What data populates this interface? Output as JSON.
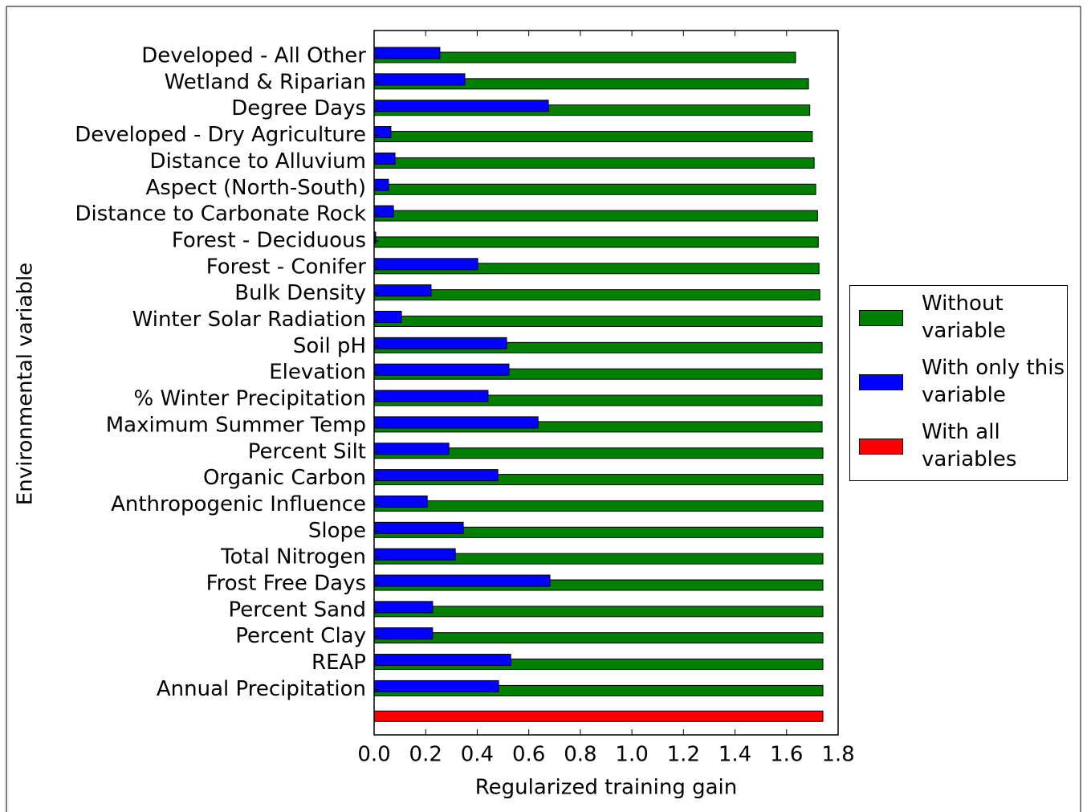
{
  "chart_data": {
    "type": "hbar_grouped",
    "x_label": "Regularized training gain",
    "y_label": "Environmental variable",
    "categories": [
      "Developed - All Other",
      "Wetland & Riparian",
      "Degree Days",
      "Developed - Dry Agriculture",
      "Distance to Alluvium",
      "Aspect (North-South)",
      "Distance to Carbonate Rock",
      "Forest - Deciduous",
      "Forest - Conifer",
      "Bulk Density",
      "Winter Solar Radiation",
      "Soil pH",
      "Elevation",
      "% Winter Precipitation",
      "Maximum Summer Temp",
      "Percent Silt",
      "Organic Carbon",
      "Anthropogenic Influence",
      "Slope",
      "Total Nitrogen",
      "Frost Free Days",
      "Percent Sand",
      "Percent Clay",
      "REAP",
      "Annual Precipitation",
      null
    ],
    "series": [
      {
        "name": "Without variable",
        "color": "#008000",
        "values": [
          1.635,
          1.685,
          1.69,
          1.7,
          1.707,
          1.713,
          1.72,
          1.723,
          1.726,
          1.729,
          1.738,
          1.738,
          1.738,
          1.738,
          1.738,
          1.741,
          1.741,
          1.741,
          1.741,
          1.741,
          1.741,
          1.741,
          1.741,
          1.741,
          1.741,
          null
        ]
      },
      {
        "name": "With only this variable",
        "color": "#0000ff",
        "values": [
          0.255,
          0.352,
          0.676,
          0.065,
          0.081,
          0.056,
          0.075,
          0.006,
          0.402,
          0.221,
          0.106,
          0.514,
          0.523,
          0.442,
          0.636,
          0.29,
          0.48,
          0.206,
          0.346,
          0.315,
          0.682,
          0.227,
          0.227,
          0.53,
          0.483,
          null
        ]
      },
      {
        "name": "With all variables",
        "color": "#ff0000",
        "values": [
          null,
          null,
          null,
          null,
          null,
          null,
          null,
          null,
          null,
          null,
          null,
          null,
          null,
          null,
          null,
          null,
          null,
          null,
          null,
          null,
          null,
          null,
          null,
          null,
          null,
          1.741
        ]
      }
    ],
    "xlim": [
      0,
      1.8
    ],
    "xticks": [
      {
        "value": 0,
        "label": "0.0"
      },
      {
        "value": 0.2,
        "label": "0.2"
      },
      {
        "value": 0.4,
        "label": "0.4"
      },
      {
        "value": 0.6,
        "label": "0.6"
      },
      {
        "value": 0.8,
        "label": "0.8"
      },
      {
        "value": 1,
        "label": "1.0"
      },
      {
        "value": 1.2,
        "label": "1.2"
      },
      {
        "value": 1.4,
        "label": "1.4"
      },
      {
        "value": 1.6,
        "label": "1.6"
      },
      {
        "value": 1.8,
        "label": "1.8"
      }
    ],
    "legend": "right"
  }
}
